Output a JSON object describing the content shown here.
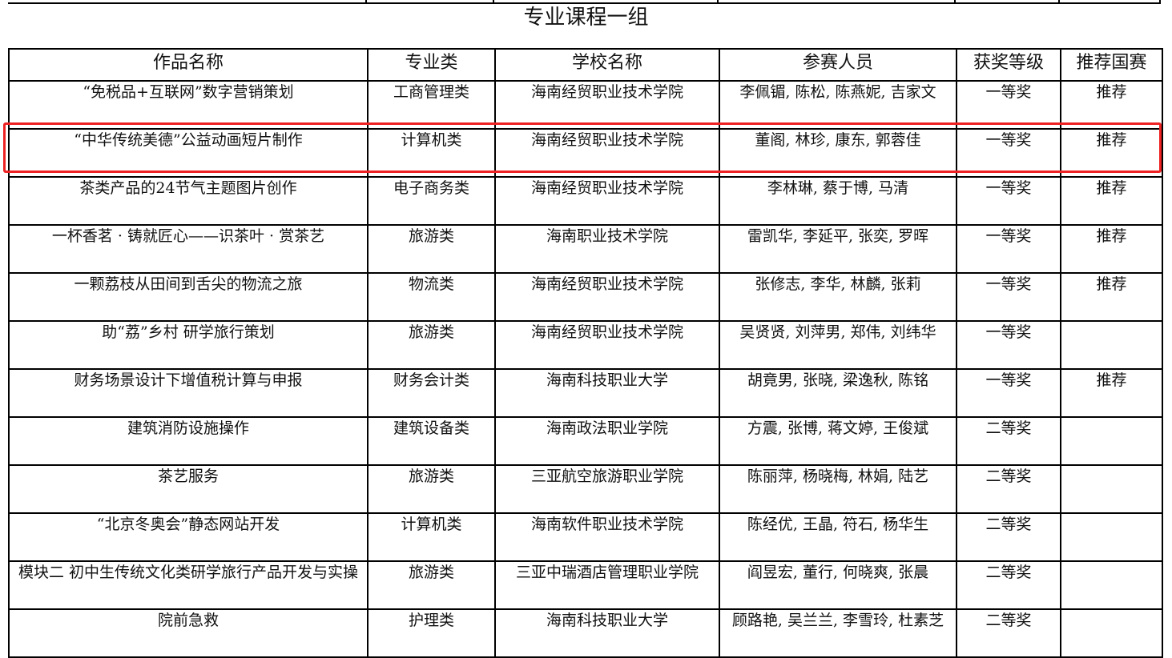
{
  "title": "专业课程一组",
  "highlight_color": "#ee2222",
  "columns": [
    "作品名称",
    "专业类",
    "学校名称",
    "参赛人员",
    "获奖等级",
    "推荐国赛"
  ],
  "rows": [
    [
      "“免税品+互联网”数字营销策划",
      "工商管理类",
      "海南经贸职业技术学院",
      "李佩镅, 陈松, 陈燕妮, 吉家文",
      "一等奖",
      "推荐"
    ],
    [
      "“中华传统美德”公益动画短片制作",
      "计算机类",
      "海南经贸职业技术学院",
      "董阁, 林珍, 康东, 郭蓉佳",
      "一等奖",
      "推荐"
    ],
    [
      "茶类产品的24节气主题图片创作",
      "电子商务类",
      "海南经贸职业技术学院",
      "李林琳, 蔡于博, 马清",
      "一等奖",
      "推荐"
    ],
    [
      "一杯香茗 · 铸就匠心——识茶叶 · 赏茶艺",
      "旅游类",
      "海南职业技术学院",
      "雷凯华, 李延平, 张奕, 罗晖",
      "一等奖",
      "推荐"
    ],
    [
      "一颗荔枝从田间到舌尖的物流之旅",
      "物流类",
      "海南经贸职业技术学院",
      "张修志, 李华, 林麟, 张莉",
      "一等奖",
      "推荐"
    ],
    [
      "助“荔”乡村 研学旅行策划",
      "旅游类",
      "海南经贸职业技术学院",
      "吴贤贤, 刘萍男, 郑伟, 刘纬华",
      "一等奖",
      ""
    ],
    [
      "财务场景设计下增值税计算与申报",
      "财务会计类",
      "海南科技职业大学",
      "胡竟男, 张晓, 梁逸秋, 陈铭",
      "一等奖",
      "推荐"
    ],
    [
      "建筑消防设施操作",
      "建筑设备类",
      "海南政法职业学院",
      "方震, 张博, 蒋文婷, 王俊斌",
      "二等奖",
      ""
    ],
    [
      "茶艺服务",
      "旅游类",
      "三亚航空旅游职业学院",
      "陈丽萍, 杨晓梅, 林娟, 陆艺",
      "二等奖",
      ""
    ],
    [
      "“北京冬奥会”静态网站开发",
      "计算机类",
      "海南软件职业技术学院",
      "陈经优, 王晶, 符石, 杨华生",
      "二等奖",
      ""
    ],
    [
      "模块二 初中生传统文化类研学旅行产品开发与实操",
      "旅游类",
      "三亚中瑞酒店管理职业学院",
      "阎昱宏, 董行, 何晓爽, 张晨",
      "二等奖",
      ""
    ],
    [
      "院前急救",
      "护理类",
      "海南科技职业大学",
      "顾路艳, 吴兰兰, 李雪玲, 杜素芝",
      "二等奖",
      ""
    ]
  ]
}
